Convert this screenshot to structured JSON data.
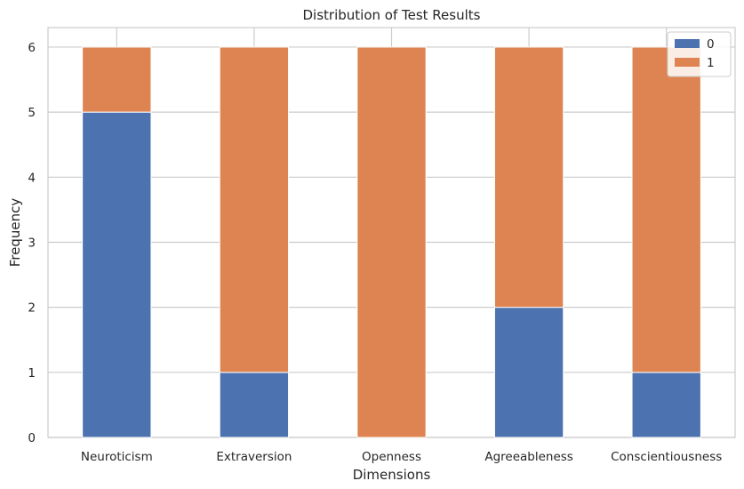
{
  "chart_data": {
    "type": "bar",
    "stacked": true,
    "title": "Distribution of Test Results",
    "xlabel": "Dimensions",
    "ylabel": "Frequency",
    "categories": [
      "Neuroticism",
      "Extraversion",
      "Openness",
      "Agreeableness",
      "Conscientiousness"
    ],
    "series": [
      {
        "name": "0",
        "color": "#4c72b0",
        "values": [
          5,
          1,
          0,
          2,
          1
        ]
      },
      {
        "name": "1",
        "color": "#dd8452",
        "values": [
          1,
          5,
          6,
          4,
          5
        ]
      }
    ],
    "ylim": [
      0,
      6.3
    ],
    "yticks": [
      0,
      1,
      2,
      3,
      4,
      5,
      6
    ],
    "grid": true,
    "legend_position": "top-right"
  }
}
